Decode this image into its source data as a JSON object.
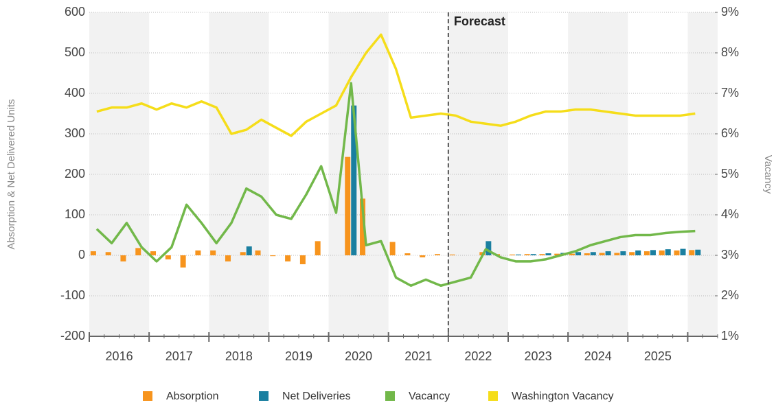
{
  "chart_data": {
    "type": "bar_line",
    "annotation": "Forecast",
    "y_label": "Absorption & Net Delivered Units",
    "y2_label": "Vacancy",
    "categories": [
      null,
      "2016",
      null,
      null,
      null,
      "2017",
      null,
      null,
      null,
      "2018",
      null,
      null,
      null,
      "2019",
      null,
      null,
      null,
      "2020",
      null,
      null,
      null,
      "2021",
      null,
      null,
      null,
      "2022",
      null,
      null,
      null,
      "2023",
      null,
      null,
      null,
      "2024",
      null,
      null,
      null,
      "2025",
      null,
      null,
      null
    ],
    "series": [
      {
        "name": "Absorption",
        "kind": "bar",
        "color": "#f7941d",
        "values": [
          10,
          8,
          -15,
          18,
          10,
          -10,
          -30,
          12,
          12,
          -15,
          8,
          12,
          -2,
          -15,
          -22,
          35,
          0,
          243,
          140,
          0,
          33,
          5,
          -5,
          3,
          2,
          0,
          8,
          3,
          2,
          3,
          3,
          4,
          4,
          5,
          6,
          6,
          8,
          10,
          12,
          12,
          13
        ]
      },
      {
        "name": "Net Deliveries",
        "kind": "bar",
        "color": "#1a7fa0",
        "values": [
          0,
          0,
          0,
          0,
          0,
          0,
          0,
          0,
          0,
          0,
          22,
          0,
          0,
          0,
          0,
          0,
          0,
          370,
          0,
          0,
          0,
          0,
          0,
          0,
          0,
          0,
          35,
          0,
          2,
          3,
          5,
          6,
          8,
          8,
          10,
          10,
          12,
          13,
          15,
          16,
          14
        ]
      },
      {
        "name": "Vacancy",
        "kind": "line",
        "axis": "y2",
        "color": "#72b84a",
        "values": [
          3.65,
          3.3,
          3.8,
          3.2,
          2.85,
          3.2,
          4.25,
          3.8,
          3.3,
          3.8,
          4.65,
          4.45,
          4.0,
          3.9,
          4.5,
          5.2,
          4.05,
          7.25,
          3.25,
          3.35,
          2.45,
          2.25,
          2.4,
          2.25,
          2.35,
          2.45,
          3.15,
          2.95,
          2.85,
          2.85,
          2.9,
          3.0,
          3.1,
          3.25,
          3.35,
          3.45,
          3.5,
          3.5,
          3.55,
          3.58,
          3.6
        ]
      },
      {
        "name": "Washington Vacancy",
        "kind": "line",
        "axis": "y2",
        "color": "#f5dd1a",
        "values": [
          6.55,
          6.65,
          6.65,
          6.75,
          6.6,
          6.75,
          6.65,
          6.8,
          6.65,
          6.0,
          6.1,
          6.35,
          6.15,
          5.95,
          6.3,
          6.5,
          6.7,
          7.4,
          8.0,
          8.45,
          7.6,
          6.4,
          6.45,
          6.5,
          6.45,
          6.3,
          6.25,
          6.2,
          6.3,
          6.45,
          6.55,
          6.55,
          6.6,
          6.6,
          6.55,
          6.5,
          6.45,
          6.45,
          6.45,
          6.45,
          6.5
        ]
      }
    ],
    "ylim": [
      -200,
      600
    ],
    "yticks": [
      -200,
      -100,
      0,
      100,
      200,
      300,
      400,
      500,
      600
    ],
    "y2lim": [
      1,
      9
    ],
    "y2ticks": [
      {
        "value": 1,
        "label": "1%"
      },
      {
        "value": 2,
        "label": "2%"
      },
      {
        "value": 3,
        "label": "3%"
      },
      {
        "value": 4,
        "label": "4%"
      },
      {
        "value": 5,
        "label": "5%"
      },
      {
        "value": 6,
        "label": "6%"
      },
      {
        "value": 7,
        "label": "7%"
      },
      {
        "value": 8,
        "label": "8%"
      },
      {
        "value": 9,
        "label": "9%"
      }
    ],
    "grid": true
  }
}
